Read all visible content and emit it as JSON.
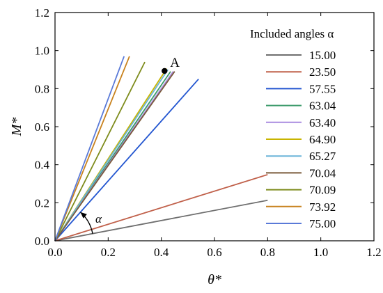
{
  "chart_data": {
    "type": "line",
    "xlabel": "θ*",
    "ylabel": "M*",
    "xlim": [
      0,
      1.2
    ],
    "ylim": [
      0,
      1.2
    ],
    "x_ticks": [
      "0.0",
      "0.2",
      "0.4",
      "0.6",
      "0.8",
      "1.0",
      "1.2"
    ],
    "y_ticks": [
      "0.0",
      "0.2",
      "0.4",
      "0.6",
      "0.8",
      "1.0",
      "1.2"
    ],
    "x_tick_values": [
      0,
      0.2,
      0.4,
      0.6,
      0.8,
      1.0,
      1.2
    ],
    "y_tick_values": [
      0,
      0.2,
      0.4,
      0.6,
      0.8,
      1.0,
      1.2
    ],
    "grid": false,
    "legend": {
      "title": "Included angles α",
      "placement": "right"
    },
    "series": [
      {
        "name": "15.00",
        "color": "#6e6e6e",
        "points": [
          [
            0,
            0
          ],
          [
            0.8,
            0.213
          ]
        ]
      },
      {
        "name": "23.50",
        "color": "#c0604a",
        "points": [
          [
            0,
            0
          ],
          [
            0.8,
            0.348
          ]
        ]
      },
      {
        "name": "57.55",
        "color": "#2255d0",
        "points": [
          [
            0,
            0
          ],
          [
            0.54,
            0.85
          ]
        ]
      },
      {
        "name": "63.04",
        "color": "#3a9a6a",
        "points": [
          [
            0,
            0
          ],
          [
            0.435,
            0.89
          ]
        ]
      },
      {
        "name": "63.40",
        "color": "#a98be0",
        "points": [
          [
            0,
            0
          ],
          [
            0.445,
            0.89
          ]
        ]
      },
      {
        "name": "64.90",
        "color": "#c8b400",
        "points": [
          [
            0,
            0
          ],
          [
            0.42,
            0.905
          ]
        ]
      },
      {
        "name": "65.27",
        "color": "#6ab4d8",
        "points": [
          [
            0,
            0
          ],
          [
            0.425,
            0.9
          ]
        ]
      },
      {
        "name": "70.04",
        "color": "#7a5a3a",
        "points": [
          [
            0,
            0
          ],
          [
            0.45,
            0.89
          ]
        ]
      },
      {
        "name": "70.09",
        "color": "#7e8c1c",
        "points": [
          [
            0,
            0
          ],
          [
            0.338,
            0.94
          ]
        ]
      },
      {
        "name": "73.92",
        "color": "#c8821e",
        "points": [
          [
            0,
            0
          ],
          [
            0.28,
            0.97
          ]
        ]
      },
      {
        "name": "75.00",
        "color": "#5a7ad8",
        "points": [
          [
            0,
            0
          ],
          [
            0.26,
            0.97
          ]
        ]
      }
    ],
    "annotations": {
      "point_label": "A",
      "point": [
        0.412,
        0.893
      ],
      "angle_label": "α"
    }
  }
}
